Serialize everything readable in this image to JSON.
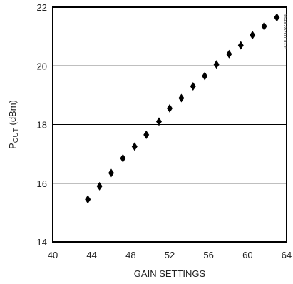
{
  "chart_data": {
    "type": "scatter",
    "title": "",
    "xlabel": "GAIN SETTINGS",
    "ylabel": {
      "main": "P",
      "subscript": "OUT",
      "unit": " (dBm)"
    },
    "xlim": [
      40,
      64
    ],
    "ylim": [
      14,
      22
    ],
    "xticks": [
      40,
      44,
      48,
      52,
      56,
      60,
      64
    ],
    "yticks": [
      14,
      16,
      18,
      20,
      22
    ],
    "grid": "horizontal",
    "marker": "diamond",
    "color": "#000000",
    "watermark": "MAX2820 toc06",
    "points": [
      {
        "x": 43.6,
        "y": 15.45
      },
      {
        "x": 44.8,
        "y": 15.9
      },
      {
        "x": 46.0,
        "y": 16.35
      },
      {
        "x": 47.2,
        "y": 16.85
      },
      {
        "x": 48.4,
        "y": 17.25
      },
      {
        "x": 49.6,
        "y": 17.65
      },
      {
        "x": 50.9,
        "y": 18.1
      },
      {
        "x": 52.0,
        "y": 18.55
      },
      {
        "x": 53.2,
        "y": 18.9
      },
      {
        "x": 54.4,
        "y": 19.3
      },
      {
        "x": 55.6,
        "y": 19.65
      },
      {
        "x": 56.8,
        "y": 20.05
      },
      {
        "x": 58.1,
        "y": 20.4
      },
      {
        "x": 59.3,
        "y": 20.7
      },
      {
        "x": 60.5,
        "y": 21.05
      },
      {
        "x": 61.7,
        "y": 21.35
      },
      {
        "x": 63.0,
        "y": 21.65
      }
    ]
  }
}
